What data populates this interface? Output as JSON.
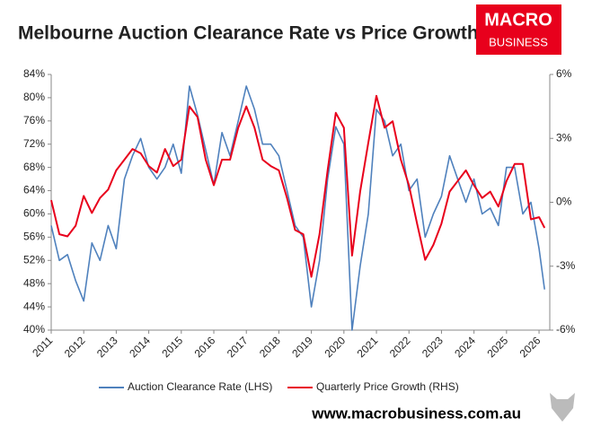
{
  "chart_data": {
    "type": "line",
    "title": "Melbourne Auction Clearance Rate vs Price Growth",
    "logo": [
      "MACRO",
      "BUSINESS"
    ],
    "footer": "www.macrobusiness.com.au",
    "x": [
      2011.0,
      2011.25,
      2011.5,
      2011.75,
      2012.0,
      2012.25,
      2012.5,
      2012.75,
      2013.0,
      2013.25,
      2013.5,
      2013.75,
      2014.0,
      2014.25,
      2014.5,
      2014.75,
      2015.0,
      2015.25,
      2015.5,
      2015.75,
      2016.0,
      2016.25,
      2016.5,
      2016.75,
      2017.0,
      2017.25,
      2017.5,
      2017.75,
      2018.0,
      2018.25,
      2018.5,
      2018.75,
      2019.0,
      2019.25,
      2019.5,
      2019.75,
      2020.0,
      2020.25,
      2020.5,
      2020.75,
      2021.0,
      2021.25,
      2021.5,
      2021.75,
      2022.0,
      2022.25,
      2022.5,
      2022.75,
      2023.0,
      2023.25,
      2023.5,
      2023.75,
      2024.0,
      2024.25,
      2024.5,
      2024.75,
      2025.0,
      2025.25,
      2025.5,
      2025.75,
      2026.0,
      2026.17
    ],
    "series": [
      {
        "name": "Auction Clearance Rate (LHS)",
        "color": "#4f81bd",
        "axis": "y",
        "values": [
          58,
          52,
          53,
          48.5,
          45,
          55,
          52,
          58,
          54,
          66,
          70,
          73,
          68,
          66,
          68,
          72,
          67,
          82,
          77,
          71,
          65,
          74,
          70,
          76,
          82,
          78,
          72,
          72,
          70,
          64,
          58,
          56,
          44,
          52,
          66,
          75,
          72,
          40,
          51,
          60,
          78,
          76,
          70,
          72,
          64,
          66,
          56,
          60,
          63,
          70,
          66,
          62,
          66,
          60,
          61,
          58,
          68,
          68,
          60,
          62,
          54,
          47
        ]
      },
      {
        "name": "Quarterly Price Growth (RHS)",
        "color": "#e8001c",
        "axis": "y2",
        "values": [
          0.1,
          -1.5,
          -1.6,
          -1.1,
          0.3,
          -0.5,
          0.2,
          0.6,
          1.5,
          2.0,
          2.5,
          2.3,
          1.7,
          1.4,
          2.5,
          1.7,
          2.0,
          4.5,
          4.0,
          2.0,
          0.8,
          2.0,
          2.0,
          3.5,
          4.5,
          3.5,
          2.0,
          1.7,
          1.5,
          0.2,
          -1.3,
          -1.5,
          -3.5,
          -1.5,
          1.5,
          4.2,
          3.5,
          -2.5,
          0.5,
          2.8,
          5.0,
          3.5,
          3.8,
          2.0,
          0.8,
          -1.0,
          -2.7,
          -2.0,
          -1.0,
          0.5,
          1.0,
          1.5,
          0.8,
          0.2,
          0.5,
          -0.2,
          1.0,
          1.8,
          1.8,
          -0.8,
          -0.7,
          -1.2
        ]
      }
    ],
    "xlim": [
      2011,
      2026.33
    ],
    "xticks": [
      2011,
      2012,
      2013,
      2014,
      2015,
      2016,
      2017,
      2018,
      2019,
      2020,
      2021,
      2022,
      2023,
      2024,
      2025,
      2026
    ],
    "ylim": [
      40,
      84
    ],
    "yticks": [
      {
        "value": 40,
        "label": "40%"
      },
      {
        "value": 44,
        "label": "44%"
      },
      {
        "value": 48,
        "label": "48%"
      },
      {
        "value": 52,
        "label": "52%"
      },
      {
        "value": 56,
        "label": "56%"
      },
      {
        "value": 60,
        "label": "60%"
      },
      {
        "value": 64,
        "label": "64%"
      },
      {
        "value": 68,
        "label": "68%"
      },
      {
        "value": 72,
        "label": "72%"
      },
      {
        "value": 76,
        "label": "76%"
      },
      {
        "value": 80,
        "label": "80%"
      },
      {
        "value": 84,
        "label": "84%"
      }
    ],
    "y2lim": [
      -6,
      6
    ],
    "y2ticks": [
      {
        "value": -6,
        "label": "-6%"
      },
      {
        "value": -3,
        "label": "-3%"
      },
      {
        "value": 0,
        "label": "0%"
      },
      {
        "value": 3,
        "label": "3%"
      },
      {
        "value": 6,
        "label": "6%"
      }
    ],
    "grid": false,
    "legend": "bottom"
  }
}
